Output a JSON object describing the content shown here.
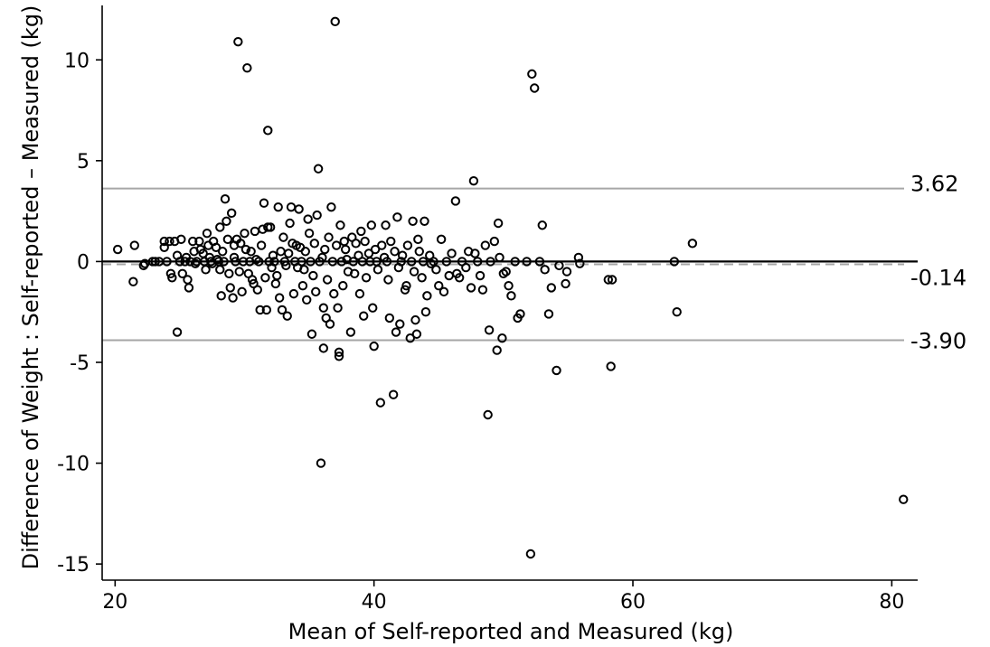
{
  "chart_data": {
    "type": "scatter",
    "title": "",
    "xlabel": "Mean of Self-reported and Measured (kg)",
    "ylabel": "Difference of Weight :  Self-reported – Measured (kg)",
    "xlim": [
      19,
      82
    ],
    "ylim": [
      -15.8,
      12.7
    ],
    "x_ticks": [
      20,
      40,
      60,
      80
    ],
    "y_ticks": [
      10,
      5,
      0,
      -5,
      -10,
      -15
    ],
    "x_tick_labels": [
      "20",
      "40",
      "60",
      "80"
    ],
    "y_tick_labels": [
      "10",
      "5",
      "0",
      "-5",
      "-10",
      "-15"
    ],
    "grid": false,
    "zero_line": 0,
    "reference_lines": [
      {
        "label": "3.62",
        "value": 3.62,
        "style": "solid",
        "color": "#a6a6a6"
      },
      {
        "label": "-0.14",
        "value": -0.14,
        "style": "dashed",
        "color": "#a6a6a6"
      },
      {
        "label": "-3.90",
        "value": -3.9,
        "style": "solid",
        "color": "#a6a6a6"
      }
    ],
    "series": [
      {
        "marker": "hollow-circle",
        "points": [
          [
            20.2,
            0.6
          ],
          [
            21.5,
            0.8
          ],
          [
            21.4,
            -1.0
          ],
          [
            22.3,
            -0.1
          ],
          [
            22.2,
            -0.2
          ],
          [
            22.9,
            0.0
          ],
          [
            23.1,
            0.0
          ],
          [
            23.4,
            0.0
          ],
          [
            23.8,
            1.0
          ],
          [
            23.8,
            0.7
          ],
          [
            24.0,
            0.0
          ],
          [
            24.2,
            1.0
          ],
          [
            24.3,
            -0.6
          ],
          [
            24.4,
            -0.8
          ],
          [
            24.6,
            1.0
          ],
          [
            24.8,
            0.3
          ],
          [
            24.8,
            -3.5
          ],
          [
            25.0,
            0.0
          ],
          [
            25.1,
            1.1
          ],
          [
            25.2,
            -0.6
          ],
          [
            25.4,
            0.0
          ],
          [
            25.5,
            0.2
          ],
          [
            25.6,
            -0.9
          ],
          [
            25.7,
            -1.3
          ],
          [
            25.8,
            0.0
          ],
          [
            26.0,
            1.0
          ],
          [
            26.1,
            0.5
          ],
          [
            26.2,
            -0.1
          ],
          [
            26.3,
            0.0
          ],
          [
            26.5,
            1.0
          ],
          [
            26.6,
            0.6
          ],
          [
            26.8,
            0.4
          ],
          [
            26.9,
            0.0
          ],
          [
            27.0,
            -0.4
          ],
          [
            27.1,
            1.4
          ],
          [
            27.2,
            0.8
          ],
          [
            27.3,
            0.2
          ],
          [
            27.4,
            0.0
          ],
          [
            27.5,
            -0.1
          ],
          [
            27.6,
            1.0
          ],
          [
            27.8,
            0.7
          ],
          [
            27.9,
            0.1
          ],
          [
            28.0,
            0.0
          ],
          [
            28.1,
            -0.4
          ],
          [
            28.1,
            1.7
          ],
          [
            28.2,
            -1.7
          ],
          [
            28.3,
            0.5
          ],
          [
            28.4,
            0.0
          ],
          [
            28.5,
            3.1
          ],
          [
            28.6,
            2.0
          ],
          [
            28.7,
            1.1
          ],
          [
            28.8,
            -0.6
          ],
          [
            28.9,
            -1.3
          ],
          [
            29.0,
            2.4
          ],
          [
            29.1,
            -1.8
          ],
          [
            29.2,
            0.2
          ],
          [
            29.2,
            0.8
          ],
          [
            29.3,
            0.0
          ],
          [
            29.4,
            1.1
          ],
          [
            29.5,
            10.9
          ],
          [
            29.6,
            -0.5
          ],
          [
            29.7,
            0.9
          ],
          [
            29.8,
            -1.5
          ],
          [
            29.9,
            0.0
          ],
          [
            30.0,
            1.4
          ],
          [
            30.1,
            0.6
          ],
          [
            30.2,
            9.6
          ],
          [
            30.3,
            -0.6
          ],
          [
            30.4,
            0.0
          ],
          [
            30.5,
            0.5
          ],
          [
            30.6,
            -0.9
          ],
          [
            30.7,
            -1.1
          ],
          [
            30.8,
            1.5
          ],
          [
            30.9,
            0.1
          ],
          [
            31.0,
            -1.4
          ],
          [
            31.1,
            0.0
          ],
          [
            31.2,
            -2.4
          ],
          [
            31.3,
            0.8
          ],
          [
            31.4,
            1.6
          ],
          [
            31.5,
            2.9
          ],
          [
            31.6,
            -0.8
          ],
          [
            31.7,
            -2.4
          ],
          [
            31.8,
            6.5
          ],
          [
            31.8,
            1.7
          ],
          [
            31.9,
            0.0
          ],
          [
            32.0,
            1.7
          ],
          [
            32.1,
            -0.3
          ],
          [
            32.2,
            0.3
          ],
          [
            32.3,
            0.0
          ],
          [
            32.4,
            -1.1
          ],
          [
            32.5,
            -0.7
          ],
          [
            32.6,
            2.7
          ],
          [
            32.7,
            -1.8
          ],
          [
            32.8,
            0.5
          ],
          [
            32.9,
            -2.4
          ],
          [
            33.0,
            1.2
          ],
          [
            33.1,
            0.0
          ],
          [
            33.2,
            -0.2
          ],
          [
            33.3,
            -2.7
          ],
          [
            33.4,
            0.4
          ],
          [
            33.5,
            1.9
          ],
          [
            33.6,
            2.7
          ],
          [
            33.7,
            0.9
          ],
          [
            33.8,
            -1.6
          ],
          [
            33.9,
            0.0
          ],
          [
            34.0,
            0.8
          ],
          [
            34.1,
            -0.3
          ],
          [
            34.2,
            2.6
          ],
          [
            34.3,
            0.7
          ],
          [
            34.4,
            0.0
          ],
          [
            34.5,
            -1.2
          ],
          [
            34.6,
            -0.4
          ],
          [
            34.7,
            0.5
          ],
          [
            34.8,
            -1.9
          ],
          [
            34.9,
            2.1
          ],
          [
            35.0,
            1.4
          ],
          [
            35.1,
            0.0
          ],
          [
            35.2,
            -3.6
          ],
          [
            35.3,
            -0.7
          ],
          [
            35.4,
            0.9
          ],
          [
            35.5,
            -1.5
          ],
          [
            35.6,
            2.3
          ],
          [
            35.7,
            4.6
          ],
          [
            35.8,
            0.0
          ],
          [
            35.9,
            -10.0
          ],
          [
            36.0,
            0.2
          ],
          [
            36.1,
            -2.3
          ],
          [
            36.1,
            -4.3
          ],
          [
            36.2,
            0.6
          ],
          [
            36.3,
            -2.8
          ],
          [
            36.4,
            -0.9
          ],
          [
            36.5,
            1.2
          ],
          [
            36.6,
            -3.1
          ],
          [
            36.7,
            2.7
          ],
          [
            36.8,
            0.0
          ],
          [
            36.9,
            -1.6
          ],
          [
            37.0,
            11.9
          ],
          [
            37.1,
            0.8
          ],
          [
            37.2,
            -2.3
          ],
          [
            37.3,
            -4.7
          ],
          [
            37.3,
            -4.5
          ],
          [
            37.4,
            1.8
          ],
          [
            37.5,
            0.0
          ],
          [
            37.6,
            -1.2
          ],
          [
            37.7,
            1.0
          ],
          [
            37.8,
            0.6
          ],
          [
            37.9,
            0.1
          ],
          [
            38.0,
            -0.5
          ],
          [
            38.2,
            -3.5
          ],
          [
            38.3,
            1.2
          ],
          [
            38.4,
            0.0
          ],
          [
            38.5,
            -0.6
          ],
          [
            38.6,
            0.9
          ],
          [
            38.8,
            0.3
          ],
          [
            38.9,
            -1.6
          ],
          [
            39.0,
            1.5
          ],
          [
            39.1,
            0.0
          ],
          [
            39.2,
            -2.7
          ],
          [
            39.3,
            1.0
          ],
          [
            39.4,
            -0.8
          ],
          [
            39.6,
            0.4
          ],
          [
            39.7,
            0.0
          ],
          [
            39.8,
            1.8
          ],
          [
            39.9,
            -2.3
          ],
          [
            40.0,
            -4.2
          ],
          [
            40.1,
            0.6
          ],
          [
            40.2,
            0.0
          ],
          [
            40.3,
            -0.4
          ],
          [
            40.5,
            -7.0
          ],
          [
            40.6,
            0.8
          ],
          [
            40.8,
            0.2
          ],
          [
            40.9,
            1.8
          ],
          [
            41.0,
            0.0
          ],
          [
            41.1,
            -0.9
          ],
          [
            41.2,
            -2.8
          ],
          [
            41.3,
            1.0
          ],
          [
            41.5,
            -6.6
          ],
          [
            41.6,
            0.5
          ],
          [
            41.7,
            -3.5
          ],
          [
            41.8,
            2.2
          ],
          [
            41.9,
            -0.3
          ],
          [
            42.0,
            -3.1
          ],
          [
            42.1,
            0.0
          ],
          [
            42.2,
            0.3
          ],
          [
            42.4,
            -1.4
          ],
          [
            42.5,
            -1.2
          ],
          [
            42.6,
            0.8
          ],
          [
            42.8,
            -3.8
          ],
          [
            42.9,
            0.0
          ],
          [
            43.0,
            2.0
          ],
          [
            43.1,
            -0.5
          ],
          [
            43.2,
            -2.9
          ],
          [
            43.3,
            -3.6
          ],
          [
            43.4,
            1.1
          ],
          [
            43.5,
            0.5
          ],
          [
            43.7,
            -0.8
          ],
          [
            43.8,
            0.0
          ],
          [
            43.9,
            2.0
          ],
          [
            44.0,
            -2.5
          ],
          [
            44.1,
            -1.7
          ],
          [
            44.3,
            0.3
          ],
          [
            44.4,
            -0.1
          ],
          [
            44.6,
            0.0
          ],
          [
            44.8,
            -0.4
          ],
          [
            45.0,
            -1.2
          ],
          [
            45.2,
            1.1
          ],
          [
            45.4,
            -1.5
          ],
          [
            45.6,
            0.0
          ],
          [
            45.8,
            -0.7
          ],
          [
            46.0,
            0.4
          ],
          [
            46.3,
            3.0
          ],
          [
            46.4,
            -0.6
          ],
          [
            46.6,
            -0.8
          ],
          [
            46.8,
            0.0
          ],
          [
            47.1,
            -0.3
          ],
          [
            47.3,
            0.5
          ],
          [
            47.5,
            -1.3
          ],
          [
            47.7,
            4.0
          ],
          [
            47.8,
            0.4
          ],
          [
            48.0,
            0.0
          ],
          [
            48.2,
            -0.7
          ],
          [
            48.4,
            -1.4
          ],
          [
            48.6,
            0.8
          ],
          [
            48.8,
            -7.6
          ],
          [
            48.9,
            -3.4
          ],
          [
            49.0,
            0.0
          ],
          [
            49.3,
            1.0
          ],
          [
            49.5,
            -4.4
          ],
          [
            49.6,
            1.9
          ],
          [
            49.7,
            0.2
          ],
          [
            49.9,
            -3.8
          ],
          [
            50.0,
            -0.6
          ],
          [
            50.2,
            -0.5
          ],
          [
            50.4,
            -1.2
          ],
          [
            50.6,
            -1.7
          ],
          [
            50.9,
            0.0
          ],
          [
            51.1,
            -2.8
          ],
          [
            51.3,
            -2.6
          ],
          [
            51.8,
            0.0
          ],
          [
            52.1,
            -14.5
          ],
          [
            52.2,
            9.3
          ],
          [
            52.4,
            8.6
          ],
          [
            52.8,
            0.0
          ],
          [
            53.0,
            1.8
          ],
          [
            53.2,
            -0.4
          ],
          [
            53.5,
            -2.6
          ],
          [
            53.7,
            -1.3
          ],
          [
            54.1,
            -5.4
          ],
          [
            54.3,
            -0.2
          ],
          [
            54.8,
            -1.1
          ],
          [
            54.9,
            -0.5
          ],
          [
            55.8,
            0.2
          ],
          [
            55.9,
            -0.1
          ],
          [
            58.1,
            -0.9
          ],
          [
            58.3,
            -5.2
          ],
          [
            58.4,
            -0.9
          ],
          [
            63.2,
            0.0
          ],
          [
            63.4,
            -2.5
          ],
          [
            64.6,
            0.9
          ],
          [
            80.9,
            -11.8
          ]
        ]
      }
    ]
  }
}
